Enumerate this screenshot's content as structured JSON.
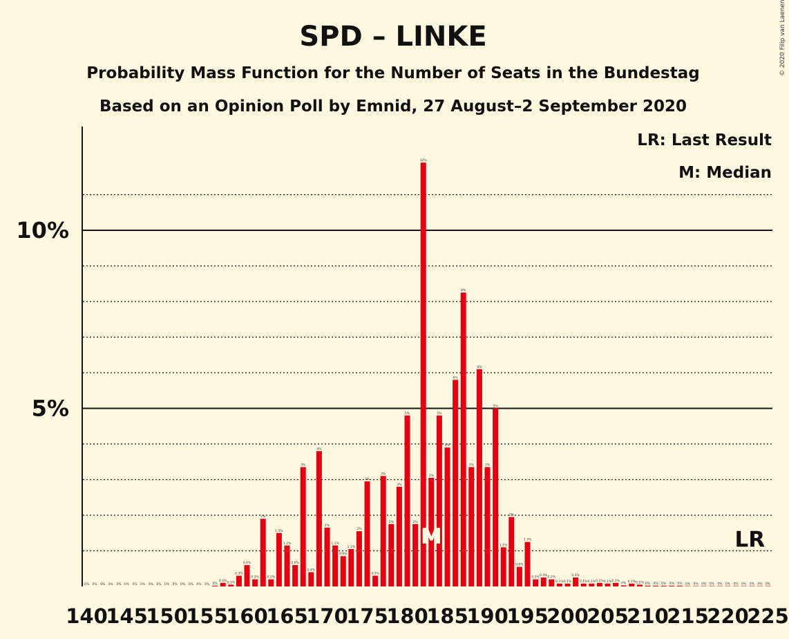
{
  "title": "SPD – LINKE",
  "subtitle1": "Probability Mass Function for the Number of Seats in the Bundestag",
  "subtitle2": "Based on an Opinion Poll by Emnid, 27 August–2 September 2020",
  "copyright": "© 2020 Filip van Laenen",
  "legend": {
    "last_result": "LR: Last Result",
    "median": "M: Median"
  },
  "colors": {
    "bar": "#E30013",
    "background": "#FFF8E1",
    "text": "#111111"
  },
  "chart_data": {
    "type": "bar",
    "xlabel": "",
    "ylabel": "",
    "x_range": [
      140,
      225
    ],
    "x_ticks": [
      140,
      145,
      150,
      155,
      160,
      165,
      170,
      175,
      180,
      185,
      190,
      195,
      200,
      205,
      210,
      215,
      220,
      225
    ],
    "ylim": [
      0,
      12.8
    ],
    "y_ticks": [
      {
        "value": 5,
        "label": "5%"
      },
      {
        "value": 10,
        "label": "10%"
      }
    ],
    "gridlines_dotted": [
      1,
      2,
      3,
      4,
      6,
      7,
      8,
      9,
      11
    ],
    "gridlines_solid": [
      5,
      10
    ],
    "last_result": {
      "seats": 223,
      "label": "LR",
      "line_value": 1
    },
    "median": {
      "seats": 183,
      "label": "M"
    },
    "seats": [
      140,
      141,
      142,
      143,
      144,
      145,
      146,
      147,
      148,
      149,
      150,
      151,
      152,
      153,
      154,
      155,
      156,
      157,
      158,
      159,
      160,
      161,
      162,
      163,
      164,
      165,
      166,
      167,
      168,
      169,
      170,
      171,
      172,
      173,
      174,
      175,
      176,
      177,
      178,
      179,
      180,
      181,
      182,
      183,
      184,
      185,
      186,
      187,
      188,
      189,
      190,
      191,
      192,
      193,
      194,
      195,
      196,
      197,
      198,
      199,
      200,
      201,
      202,
      203,
      204,
      205,
      206,
      207,
      208,
      209,
      210,
      211,
      212,
      213,
      214,
      215,
      216,
      217,
      218,
      219,
      220,
      221,
      222,
      223,
      224,
      225
    ],
    "values": [
      0,
      0,
      0,
      0,
      0,
      0,
      0,
      0,
      0,
      0,
      0,
      0,
      0,
      0,
      0,
      0,
      0.02,
      0.1,
      0.05,
      0.3,
      0.6,
      0.2,
      1.9,
      0.2,
      1.5,
      1.15,
      0.6,
      3.35,
      0.4,
      3.8,
      1.65,
      1.15,
      0.85,
      1.05,
      1.55,
      2.95,
      0.3,
      3.1,
      1.75,
      2.8,
      4.8,
      1.75,
      11.9,
      3.05,
      4.8,
      3.9,
      5.8,
      8.25,
      3.35,
      6.1,
      3.35,
      5.0,
      1.1,
      1.95,
      0.55,
      1.25,
      0.2,
      0.25,
      0.2,
      0.08,
      0.08,
      0.25,
      0.08,
      0.08,
      0.1,
      0.08,
      0.1,
      0.03,
      0.08,
      0.05,
      0.02,
      0.02,
      0.02,
      0.02,
      0.02,
      0.01,
      0.01,
      0.01,
      0.01,
      0.01,
      0.01,
      0.01,
      0.01,
      0.01,
      0.01,
      0.01
    ],
    "labels": [
      "0%",
      "0%",
      "0%",
      "0%",
      "0%",
      "0%",
      "0%",
      "0%",
      "0%",
      "0%",
      "0%",
      "0%",
      "0%",
      "0%",
      "0%",
      "0%",
      "0%",
      "0.1%",
      "0.1%",
      "0.3%",
      "0.6%",
      "0.2%",
      "2%",
      "0.2%",
      "1.5%",
      "1.2%",
      "0.6%",
      "3%",
      "0.4%",
      "4%",
      "2%",
      "1.1%",
      "0.9%",
      "1.1%",
      "2%",
      "3%",
      "0.3%",
      "3%",
      "2%",
      "3%",
      "5%",
      "2%",
      "12%",
      "3%",
      "5%",
      "4%",
      "6%",
      "8%",
      "3%",
      "6%",
      "3%",
      "5%",
      "1.1%",
      "2%",
      "0.6%",
      "1.3%",
      "0.2%",
      "0.3%",
      "0.2%",
      "0.1%",
      "0.1%",
      "0.3%",
      "0.1%",
      "0.1%",
      "0.1%",
      "0.1%",
      "0.1%",
      "0%",
      "0.1%",
      "0.1%",
      "0%",
      "0%",
      "0%",
      "0%",
      "0%",
      "0%",
      "0%",
      "0%",
      "0%",
      "0%",
      "0%",
      "0%",
      "0%",
      "0%",
      "0%",
      "0%"
    ]
  }
}
